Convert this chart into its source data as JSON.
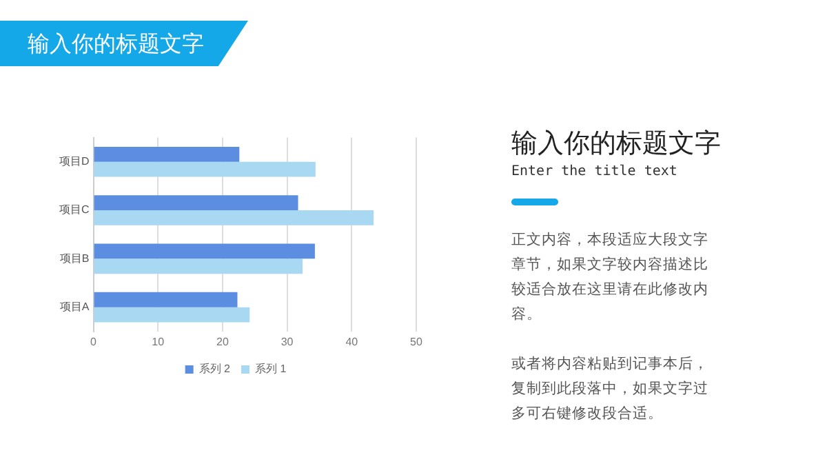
{
  "chart_data": {
    "type": "bar",
    "orientation": "horizontal",
    "title": "输入你的标题文字",
    "categories": [
      "项目D",
      "项目C",
      "项目B",
      "项目A"
    ],
    "series": [
      {
        "name": "系列 2",
        "color": "#5b8ee0",
        "values": [
          22.6,
          31.7,
          34.3,
          22.3
        ]
      },
      {
        "name": "系列 1",
        "color": "#a9d9f2",
        "values": [
          34.4,
          43.4,
          32.4,
          24.2
        ]
      }
    ],
    "xlim": [
      0,
      50
    ],
    "xticks": [
      0,
      10,
      20,
      30,
      40,
      50
    ],
    "grid": "x",
    "legend": "bottom",
    "annotations": [
      "输入你的标题文字",
      "Enter the title text",
      "正文内容，本段适应大段文字章节，如果文字较内容描述比较适合放在这里请在此修改内容。",
      "或者将内容粘贴到记事本后，复制到此段落中，如果文字过多可右键修改段合适。"
    ]
  }
}
